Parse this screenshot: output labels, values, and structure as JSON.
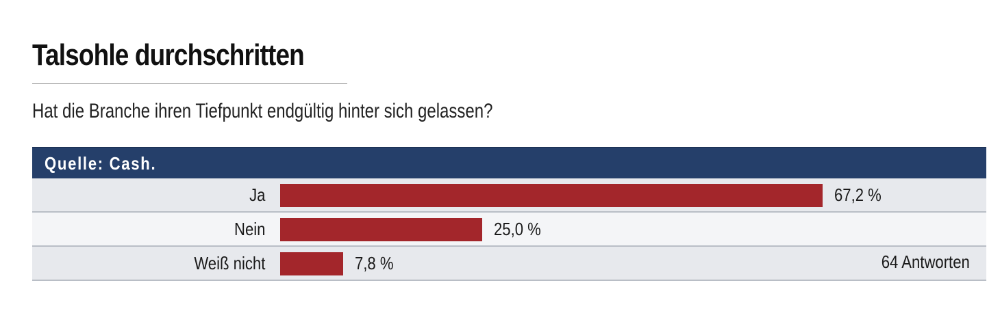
{
  "chart_data": {
    "type": "bar",
    "orientation": "horizontal",
    "title": "Talsohle durchschritten",
    "subtitle": "Hat die Branche ihren Tiefpunkt endgültig hinter sich gelassen?",
    "source": "Quelle: Cash.",
    "categories": [
      "Ja",
      "Nein",
      "Weiß nicht"
    ],
    "values": [
      67.2,
      25.0,
      7.8
    ],
    "value_labels": [
      "67,2 %",
      "25,0 %",
      "7,8 %"
    ],
    "unit": "%",
    "xlim": [
      0,
      100
    ],
    "note": "64 Antworten",
    "grid": false,
    "legend": "none"
  },
  "colors": {
    "bar": "#a3262b",
    "source_bar": "#253f6a",
    "row_shaded": "#e7e9ed",
    "row_plain": "#f4f5f7"
  }
}
